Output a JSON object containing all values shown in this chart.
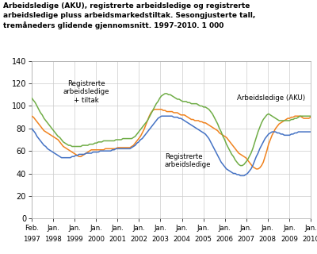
{
  "title": "Arbeidsledige (AKU), registrerte arbeidsledige og registrerte\narbeidsledige pluss arbeidsmarkedstiltak. Sesongjusterte tall,\ntremåneders glidende gjennomsnitt. 1997-2010. 1 000",
  "ylim": [
    0,
    140
  ],
  "yticks": [
    0,
    20,
    40,
    60,
    80,
    100,
    120,
    140
  ],
  "xlabel_top": [
    "Feb.",
    "Jan.",
    "Jan.",
    "Jan.",
    "Jan.",
    "Jan.",
    "Jan.",
    "Jan.",
    "Jan.",
    "Jan.",
    "Jan.",
    "Jan.",
    "Jan.",
    "Jan."
  ],
  "xlabel_bot": [
    "1997",
    "1998",
    "1999",
    "2000",
    "2001",
    "2002",
    "2003",
    "2004",
    "2005",
    "2006",
    "2007",
    "2008",
    "2009",
    "2010"
  ],
  "color_aku": "#f0821e",
  "color_reg": "#4472c4",
  "color_tiltak": "#70ad47",
  "label_aku": "Arbeidsledige (AKU)",
  "label_reg": "Registrerte\narbeidsledige",
  "label_tiltak": "Registrerte\narbeidsledige\n+ tiltak",
  "n_points": 160,
  "aku": [
    91,
    90,
    88,
    86,
    84,
    82,
    80,
    78,
    77,
    76,
    75,
    74,
    73,
    72,
    71,
    70,
    68,
    66,
    64,
    63,
    62,
    61,
    60,
    59,
    58,
    57,
    56,
    55,
    55,
    56,
    57,
    58,
    59,
    60,
    61,
    61,
    61,
    61,
    61,
    61,
    61,
    61,
    62,
    62,
    62,
    62,
    62,
    62,
    62,
    63,
    63,
    63,
    63,
    63,
    63,
    63,
    63,
    64,
    65,
    67,
    69,
    71,
    73,
    76,
    79,
    83,
    87,
    91,
    94,
    96,
    97,
    97,
    97,
    97,
    97,
    96,
    96,
    95,
    95,
    95,
    95,
    94,
    94,
    94,
    93,
    92,
    92,
    92,
    91,
    90,
    89,
    88,
    88,
    87,
    87,
    87,
    86,
    86,
    85,
    85,
    84,
    83,
    82,
    81,
    80,
    79,
    78,
    76,
    75,
    74,
    73,
    72,
    70,
    68,
    66,
    64,
    62,
    60,
    58,
    57,
    56,
    55,
    54,
    52,
    50,
    48,
    46,
    45,
    44,
    44,
    45,
    47,
    50,
    55,
    60,
    66,
    70,
    74,
    77,
    80,
    82,
    84,
    85,
    86,
    87,
    88,
    89,
    89,
    90,
    90,
    91,
    91,
    91,
    91,
    90,
    89,
    89,
    89,
    89,
    90
  ],
  "reg": [
    80,
    78,
    76,
    73,
    71,
    69,
    67,
    65,
    64,
    62,
    61,
    60,
    59,
    58,
    57,
    56,
    55,
    54,
    54,
    54,
    54,
    54,
    54,
    55,
    55,
    56,
    56,
    57,
    57,
    57,
    57,
    58,
    58,
    58,
    58,
    59,
    59,
    59,
    59,
    60,
    60,
    60,
    60,
    60,
    60,
    60,
    61,
    61,
    62,
    62,
    62,
    62,
    62,
    62,
    62,
    62,
    62,
    63,
    64,
    65,
    67,
    68,
    70,
    71,
    73,
    75,
    77,
    79,
    81,
    83,
    85,
    87,
    89,
    90,
    91,
    91,
    91,
    91,
    91,
    91,
    91,
    90,
    90,
    90,
    89,
    89,
    88,
    87,
    86,
    85,
    84,
    83,
    82,
    81,
    80,
    79,
    78,
    77,
    76,
    75,
    73,
    71,
    68,
    65,
    62,
    59,
    56,
    53,
    50,
    48,
    46,
    44,
    43,
    42,
    41,
    40,
    40,
    39,
    39,
    38,
    38,
    38,
    39,
    40,
    42,
    44,
    47,
    51,
    55,
    58,
    62,
    65,
    68,
    71,
    73,
    75,
    76,
    77,
    77,
    77,
    76,
    76,
    75,
    75,
    74,
    74,
    74,
    74,
    75,
    75,
    76,
    76,
    77,
    77,
    77,
    77,
    77,
    77,
    77,
    77
  ],
  "tiltak": [
    107,
    105,
    103,
    100,
    97,
    94,
    92,
    89,
    87,
    85,
    83,
    81,
    79,
    77,
    75,
    73,
    72,
    70,
    68,
    67,
    66,
    65,
    65,
    64,
    64,
    64,
    64,
    64,
    64,
    65,
    65,
    65,
    65,
    66,
    66,
    66,
    67,
    67,
    68,
    68,
    68,
    69,
    69,
    69,
    69,
    69,
    69,
    69,
    70,
    70,
    70,
    70,
    71,
    71,
    71,
    71,
    71,
    71,
    72,
    73,
    75,
    77,
    79,
    81,
    83,
    85,
    87,
    90,
    93,
    96,
    99,
    102,
    104,
    107,
    109,
    110,
    111,
    111,
    110,
    110,
    109,
    108,
    107,
    106,
    106,
    105,
    104,
    104,
    104,
    103,
    103,
    102,
    102,
    102,
    102,
    101,
    100,
    100,
    99,
    99,
    98,
    97,
    95,
    93,
    90,
    87,
    84,
    80,
    77,
    73,
    70,
    66,
    63,
    60,
    57,
    55,
    52,
    50,
    48,
    47,
    47,
    48,
    50,
    52,
    55,
    58,
    62,
    67,
    72,
    77,
    81,
    85,
    88,
    90,
    92,
    93,
    92,
    91,
    90,
    89,
    88,
    87,
    87,
    87,
    87,
    87,
    87,
    87,
    88,
    88,
    89,
    89,
    90,
    91,
    91,
    91,
    91,
    91,
    91,
    91
  ]
}
